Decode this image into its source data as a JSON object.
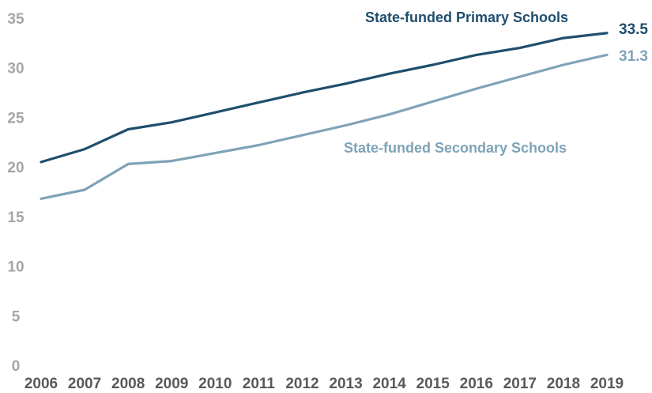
{
  "chart_data": {
    "type": "line",
    "x": [
      2006,
      2007,
      2008,
      2009,
      2010,
      2011,
      2012,
      2013,
      2014,
      2015,
      2016,
      2017,
      2018,
      2019
    ],
    "ylim": [
      0,
      35
    ],
    "yticks": [
      0,
      5,
      10,
      15,
      20,
      25,
      30,
      35
    ],
    "grid": false,
    "legend": "inline-labels",
    "series": [
      {
        "name": "State-funded Primary Schools",
        "color": "#1f4e6e",
        "values": [
          20.5,
          21.8,
          23.8,
          24.5,
          25.5,
          26.5,
          27.5,
          28.4,
          29.4,
          30.3,
          31.3,
          32.0,
          33.0,
          33.5
        ],
        "end_label": "33.5"
      },
      {
        "name": "State-funded Secondary Schools",
        "color": "#7fa3b8",
        "values": [
          16.8,
          17.7,
          20.3,
          20.6,
          21.4,
          22.2,
          23.2,
          24.2,
          25.3,
          26.6,
          27.9,
          29.1,
          30.3,
          31.3
        ],
        "end_label": "31.3"
      }
    ]
  }
}
